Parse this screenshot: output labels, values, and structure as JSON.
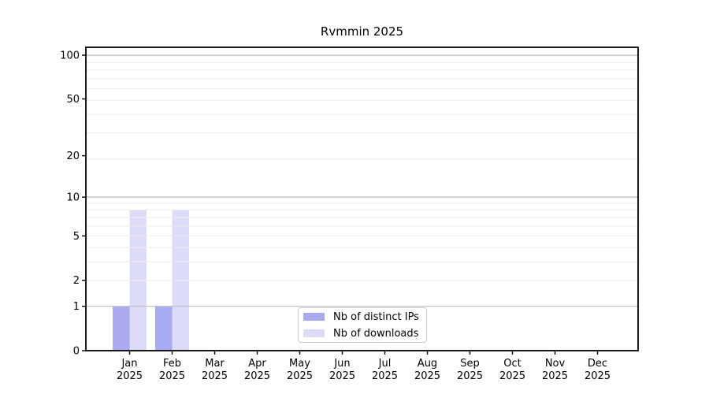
{
  "chart_data": {
    "type": "bar",
    "title": "Rvmmin 2025",
    "categories": [
      "Jan",
      "Feb",
      "Mar",
      "Apr",
      "May",
      "Jun",
      "Jul",
      "Aug",
      "Sep",
      "Oct",
      "Nov",
      "Dec"
    ],
    "category_year": "2025",
    "series": [
      {
        "name": "Nb of distinct IPs",
        "color": "#a9aaf2",
        "values": [
          1,
          1,
          0,
          0,
          0,
          0,
          0,
          0,
          0,
          0,
          0,
          0
        ]
      },
      {
        "name": "Nb of downloads",
        "color": "#dcdcf8",
        "values": [
          8,
          8,
          0,
          0,
          0,
          0,
          0,
          0,
          0,
          0,
          0,
          0
        ]
      }
    ],
    "y_ticks": [
      0,
      1,
      2,
      5,
      10,
      20,
      50,
      100
    ],
    "y_scale": "log10(1+x)",
    "ylim": [
      0,
      110
    ],
    "grid": true,
    "legend_position": "bottom-center",
    "xlabel": "",
    "ylabel": ""
  },
  "colors": {
    "grid_minor": "#ebebeb",
    "grid_decade": "#bdbdbd",
    "axis": "#000000",
    "background": "#ffffff"
  }
}
